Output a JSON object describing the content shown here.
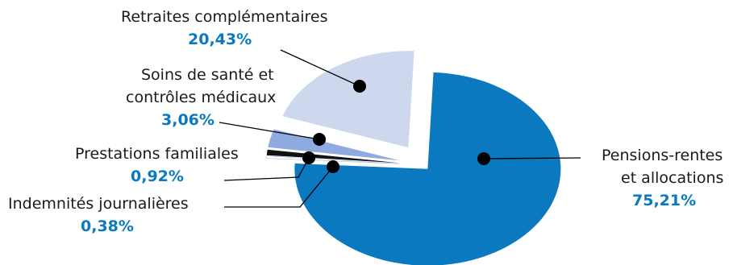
{
  "chart_data": {
    "type": "pie",
    "exploded": true,
    "colors": {
      "pensions": "#0a79bf",
      "indemnites": "#ffffff",
      "prestations": "#111111",
      "soins": "#8eaadf",
      "retraites": "#cdd8ee",
      "value_text": "#0a79bf",
      "leader": "#000000"
    },
    "slices": [
      {
        "id": "pensions",
        "label": [
          "Pensions-rentes",
          "et allocations"
        ],
        "value": 75.21,
        "value_label": "75,21%"
      },
      {
        "id": "indemnites",
        "label": [
          "Indemnités journalières"
        ],
        "value": 0.38,
        "value_label": "0,38%"
      },
      {
        "id": "prestations",
        "label": [
          "Prestations familiales"
        ],
        "value": 0.92,
        "value_label": "0,92%"
      },
      {
        "id": "soins",
        "label": [
          "Soins de santé et",
          "contrôles médicaux"
        ],
        "value": 3.06,
        "value_label": "3,06%"
      },
      {
        "id": "retraites",
        "label": [
          "Retraites complémentaires"
        ],
        "value": 20.43,
        "value_label": "20,43%"
      }
    ]
  }
}
